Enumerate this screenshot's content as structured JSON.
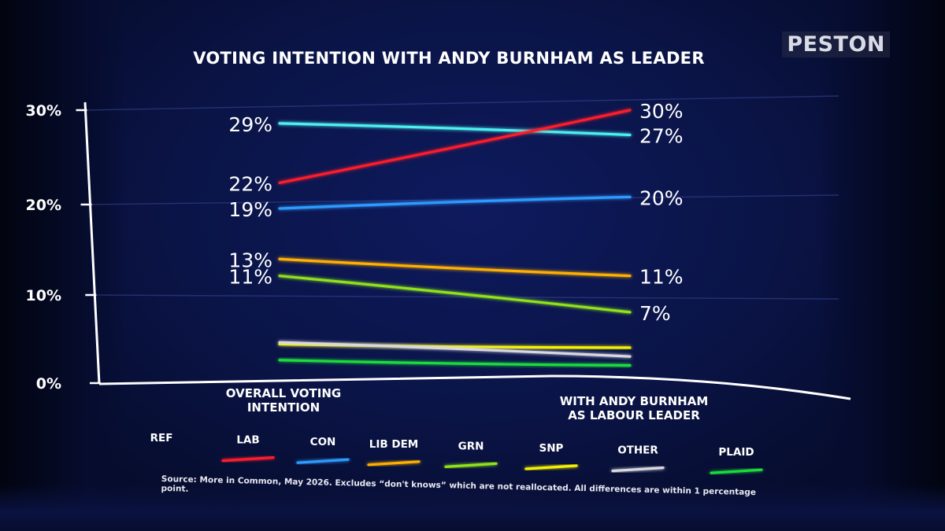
{
  "brand": "PESTON",
  "chart_data": {
    "type": "line",
    "title": "VOTING INTENTION WITH ANDY BURNHAM AS LEADER",
    "categories": [
      "OVERALL VOTING INTENTION",
      "WITH ANDY BURNHAM AS LABOUR LEADER"
    ],
    "y_ticks": [
      "0%",
      "10%",
      "20%",
      "30%"
    ],
    "ylim": [
      0,
      30
    ],
    "series": [
      {
        "name": "REF",
        "color": "#4ef0f0",
        "values": [
          28.5,
          27.2
        ],
        "labels": [
          "29%",
          "27%"
        ]
      },
      {
        "name": "LAB",
        "color": "#ff1f2a",
        "values": [
          21.8,
          30.0
        ],
        "labels": [
          "22%",
          "30%"
        ]
      },
      {
        "name": "CON",
        "color": "#2f9bff",
        "values": [
          18.9,
          20.2
        ],
        "labels": [
          "19%",
          "20%"
        ]
      },
      {
        "name": "LIB DEM",
        "color": "#ffb000",
        "values": [
          13.2,
          11.3
        ],
        "labels": [
          "13%",
          "11%"
        ]
      },
      {
        "name": "GRN",
        "color": "#8fe21a",
        "values": [
          11.3,
          7.2
        ],
        "labels": [
          "11%",
          "7%"
        ]
      },
      {
        "name": "SNP",
        "color": "#f5f000",
        "values": [
          3.6,
          3.2
        ],
        "labels": [
          "",
          ""
        ]
      },
      {
        "name": "OTHER",
        "color": "#d8d8e0",
        "values": [
          3.8,
          2.2
        ],
        "labels": [
          "",
          ""
        ]
      },
      {
        "name": "PLAID",
        "color": "#1fdc3a",
        "values": [
          1.8,
          1.2
        ],
        "labels": [
          "",
          ""
        ]
      }
    ],
    "legend_position": "bottom",
    "source": "Source: More in Common, May 2026. Excludes “don't knows” which are not reallocated. All differences are within 1 percentage point."
  }
}
